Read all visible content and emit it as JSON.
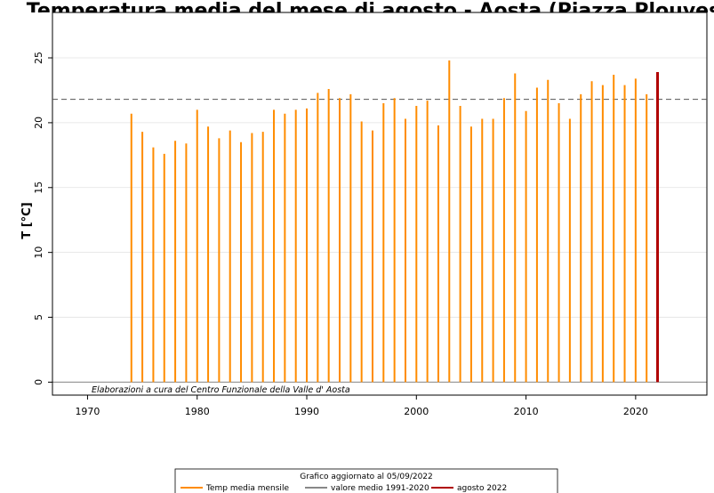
{
  "chart_data": {
    "type": "bar",
    "title": "Temperatura media del mese di agosto - Aosta (Piazza Plouves)",
    "xlabel": "",
    "ylabel": "T [°C]",
    "xlim": [
      1966.8,
      2026.5
    ],
    "ylim": [
      -1,
      28.5
    ],
    "xticks": [
      1970,
      1980,
      1990,
      2000,
      2010,
      2020
    ],
    "yticks": [
      0,
      5,
      10,
      15,
      20,
      25
    ],
    "grid": true,
    "series": [
      {
        "name": "Temp media mensile",
        "color": "#ff8c00",
        "x": [
          1974,
          1975,
          1976,
          1977,
          1978,
          1979,
          1980,
          1981,
          1982,
          1983,
          1984,
          1985,
          1986,
          1987,
          1988,
          1989,
          1990,
          1991,
          1992,
          1993,
          1994,
          1995,
          1996,
          1997,
          1998,
          1999,
          2000,
          2001,
          2002,
          2003,
          2004,
          2005,
          2006,
          2007,
          2008,
          2009,
          2010,
          2011,
          2012,
          2013,
          2014,
          2015,
          2016,
          2017,
          2018,
          2019,
          2020,
          2021
        ],
        "values": [
          20.7,
          19.3,
          18.1,
          17.6,
          18.6,
          18.4,
          21.0,
          19.7,
          18.8,
          19.4,
          18.5,
          19.2,
          19.3,
          21.0,
          20.7,
          21.0,
          21.1,
          22.3,
          22.6,
          21.9,
          22.2,
          20.1,
          19.4,
          21.5,
          21.9,
          20.3,
          21.3,
          21.7,
          19.8,
          24.8,
          21.3,
          19.7,
          20.3,
          20.3,
          21.9,
          23.8,
          20.9,
          22.7,
          23.3,
          21.5,
          20.3,
          22.2,
          23.2,
          22.9,
          23.7,
          22.9,
          23.4,
          22.2
        ]
      },
      {
        "name": "agosto 2022",
        "color": "#b00000",
        "x": [
          2022
        ],
        "values": [
          23.9
        ]
      }
    ],
    "reference_line": {
      "name": "valore medio 1991-2020",
      "value": 21.8,
      "color": "#555555"
    },
    "annotation": "Elaborazioni a cura del Centro Funzionale della Valle d' Aosta",
    "legend": {
      "placement": "bottom-center",
      "title": "Grafico aggiornato al 05/09/2022",
      "entries": [
        {
          "label": "Temp media mensile",
          "color": "#ff8c00"
        },
        {
          "label": "valore medio 1991-2020",
          "color": "#888888"
        },
        {
          "label": "agosto 2022",
          "color": "#b00000"
        }
      ]
    }
  }
}
